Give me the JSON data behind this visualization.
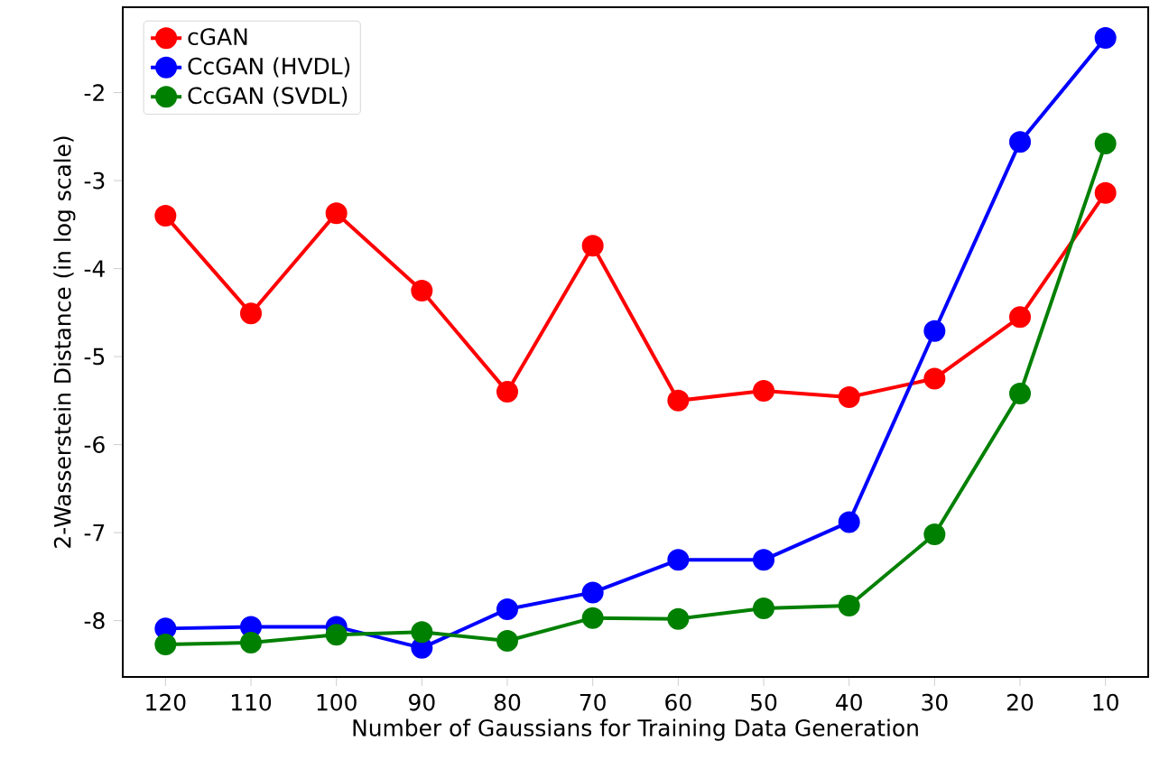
{
  "chart_data": {
    "type": "line",
    "xlabel": "Number of Gaussians for Training Data Generation",
    "ylabel": "2-Wasserstein Distance (in log scale)",
    "categories": [
      "120",
      "110",
      "100",
      "90",
      "80",
      "70",
      "60",
      "50",
      "40",
      "30",
      "20",
      "10"
    ],
    "series": [
      {
        "name": "cGAN",
        "color": "#ff0000",
        "values": [
          -3.4,
          -4.51,
          -3.37,
          -4.25,
          -5.4,
          -3.74,
          -5.5,
          -5.39,
          -5.46,
          -5.25,
          -4.55,
          -3.14
        ]
      },
      {
        "name": "CcGAN (HVDL)",
        "color": "#0000ff",
        "values": [
          -8.09,
          -8.07,
          -8.07,
          -8.31,
          -7.87,
          -7.68,
          -7.31,
          -7.31,
          -6.88,
          -4.71,
          -2.56,
          -1.38
        ]
      },
      {
        "name": "CcGAN (SVDL)",
        "color": "#008000",
        "values": [
          -8.27,
          -8.25,
          -8.16,
          -8.13,
          -8.23,
          -7.97,
          -7.98,
          -7.86,
          -7.83,
          -7.02,
          -5.42,
          -2.58
        ]
      }
    ],
    "ylim": [
      -8.64,
      -1.03
    ],
    "yticks": [
      -8,
      -7,
      -6,
      -5,
      -4,
      -3,
      -2
    ],
    "grid": false,
    "legend": "top left",
    "marker": "circle",
    "line_style": "solid"
  }
}
